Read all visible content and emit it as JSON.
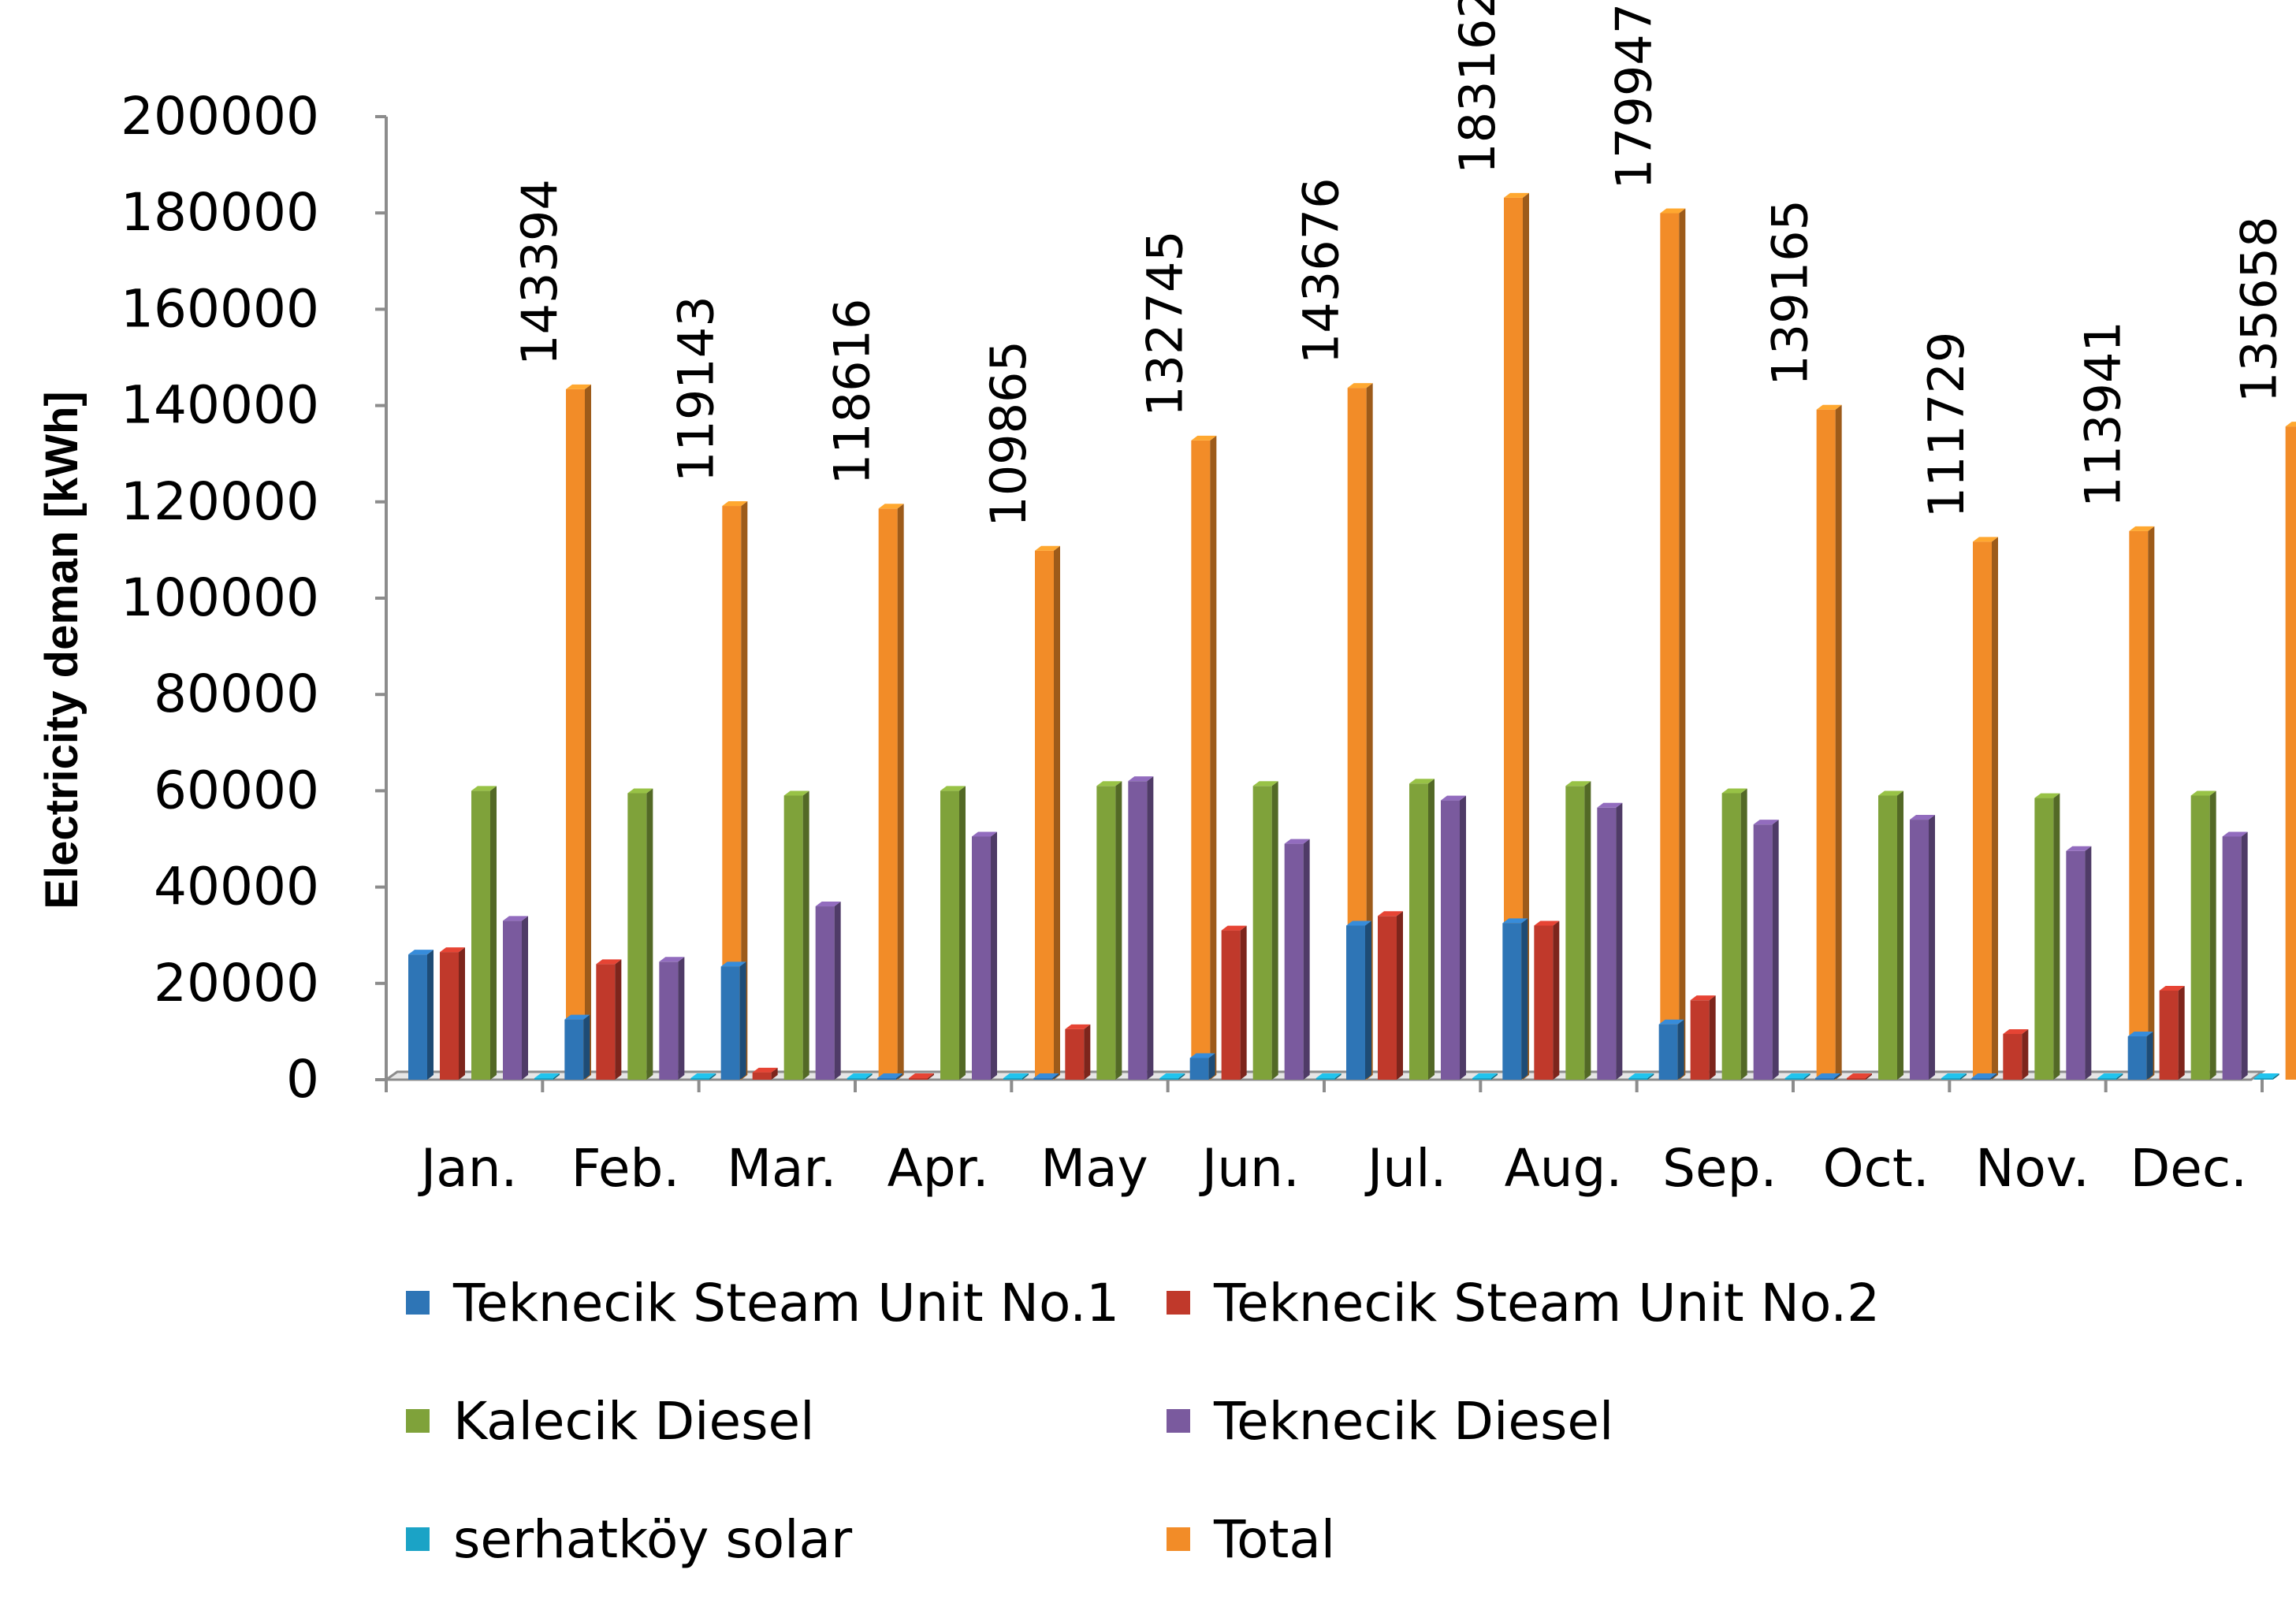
{
  "chart_data": {
    "type": "bar",
    "title": "",
    "xlabel": "",
    "ylabel": "Electricity deman [kWh]",
    "ylim": [
      0,
      200000
    ],
    "yticks": [
      "0",
      "20000",
      "40000",
      "60000",
      "80000",
      "100000",
      "120000",
      "140000",
      "160000",
      "180000",
      "200000"
    ],
    "categories": [
      "Jan.",
      "Feb.",
      "Mar.",
      "Apr.",
      "May",
      "Jun.",
      "Jul.",
      "Aug.",
      "Sep.",
      "Oct.",
      "Nov.",
      "Dec."
    ],
    "legend_position": "bottom",
    "grid": false,
    "series": [
      {
        "name": "Teknecik Steam Unit No.1",
        "color": "#2E75B6",
        "values": [
          26000,
          12500,
          23500,
          0,
          0,
          4500,
          32000,
          32500,
          11500,
          0,
          0,
          9000
        ]
      },
      {
        "name": "Teknecik Steam Unit No.2",
        "color": "#C0392B",
        "values": [
          26500,
          24000,
          1500,
          0,
          10500,
          31000,
          34000,
          32000,
          16500,
          0,
          9500,
          18500
        ]
      },
      {
        "name": "Kalecik Diesel",
        "color": "#7FA23A",
        "values": [
          60000,
          59500,
          59000,
          60000,
          61000,
          61000,
          61500,
          61000,
          59500,
          59000,
          58500,
          59000
        ]
      },
      {
        "name": "Teknecik Diesel",
        "color": "#7A5A9E",
        "values": [
          33000,
          24500,
          36000,
          50500,
          62000,
          49000,
          58000,
          56500,
          53000,
          54000,
          47500,
          50500
        ]
      },
      {
        "name": "serhatköy solar",
        "color": "#1BA3C6",
        "values": [
          300,
          300,
          300,
          300,
          300,
          300,
          300,
          300,
          300,
          300,
          300,
          300
        ]
      },
      {
        "name": "Total",
        "color": "#F28C28",
        "values": [
          143394,
          119143,
          118616,
          109865,
          132745,
          143676,
          183162,
          179947,
          139165,
          111729,
          113941,
          135658
        ]
      }
    ],
    "data_labels": [
      "143394",
      "119143",
      "118616",
      "109865",
      "132745",
      "143676",
      "183162",
      "179947",
      "139165",
      "111729",
      "113941",
      "135658"
    ]
  }
}
